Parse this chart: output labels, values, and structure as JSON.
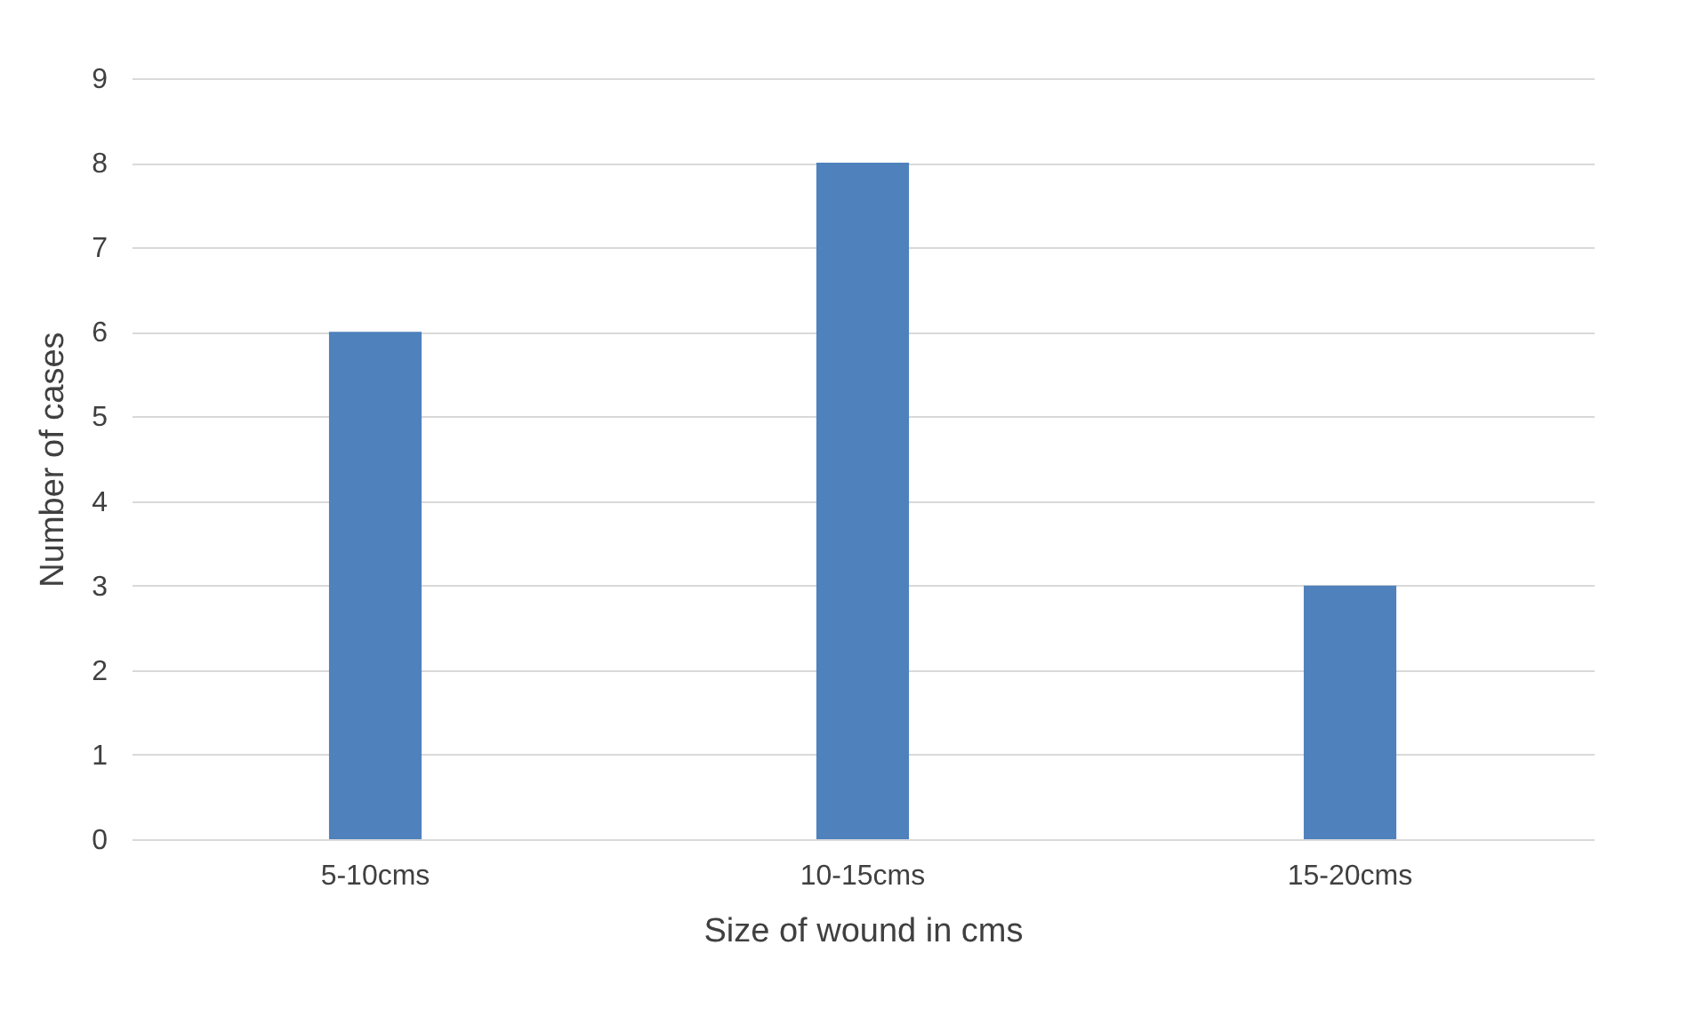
{
  "chart_data": {
    "type": "bar",
    "xlabel": "Size of wound in cms",
    "ylabel": "Number of cases",
    "categories": [
      "5-10cms",
      "10-15cms",
      "15-20cms"
    ],
    "values": [
      6,
      8,
      3
    ],
    "color": "#4f81bd",
    "ylim": [
      0,
      9
    ],
    "yticks": [
      0,
      1,
      2,
      3,
      4,
      5,
      6,
      7,
      8,
      9
    ],
    "grid": "y"
  }
}
